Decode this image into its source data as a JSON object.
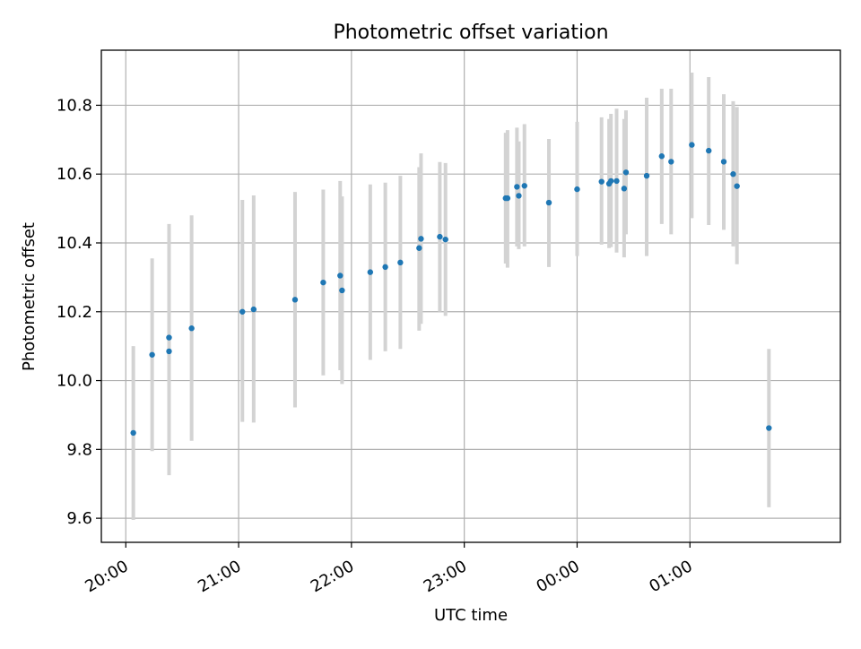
{
  "chart_data": {
    "type": "scatter",
    "title": "Photometric offset variation",
    "xlabel": "UTC time",
    "ylabel": "Photometric offset",
    "x_axis_kind": "time",
    "xlim": [
      "19:47",
      "02:20"
    ],
    "ylim": [
      9.53,
      10.96
    ],
    "x_ticks": [
      "20:00",
      "21:00",
      "22:00",
      "23:00",
      "00:00",
      "01:00"
    ],
    "y_ticks": [
      "9.6",
      "9.8",
      "10.0",
      "10.2",
      "10.4",
      "10.6",
      "10.8"
    ],
    "grid": true,
    "legend": "none",
    "colors": {
      "point": "#1f77b4",
      "errorbar": "#d3d3d3",
      "grid": "#b0b0b0"
    },
    "series": [
      {
        "points": [
          {
            "x": "20:04",
            "y": 9.848,
            "lo": 9.595,
            "hi": 10.1
          },
          {
            "x": "20:14",
            "y": 10.075,
            "lo": 9.795,
            "hi": 10.355
          },
          {
            "x": "20:23",
            "y": 10.125,
            "lo": 9.795,
            "hi": 10.455
          },
          {
            "x": "20:23",
            "y": 10.085,
            "lo": 9.725,
            "hi": 10.445
          },
          {
            "x": "20:35",
            "y": 10.152,
            "lo": 9.825,
            "hi": 10.48
          },
          {
            "x": "21:02",
            "y": 10.2,
            "lo": 9.88,
            "hi": 10.525
          },
          {
            "x": "21:08",
            "y": 10.207,
            "lo": 9.878,
            "hi": 10.538
          },
          {
            "x": "21:30",
            "y": 10.235,
            "lo": 9.922,
            "hi": 10.548
          },
          {
            "x": "21:45",
            "y": 10.285,
            "lo": 10.015,
            "hi": 10.555
          },
          {
            "x": "21:54",
            "y": 10.305,
            "lo": 10.03,
            "hi": 10.58
          },
          {
            "x": "21:55",
            "y": 10.262,
            "lo": 9.99,
            "hi": 10.535
          },
          {
            "x": "22:10",
            "y": 10.315,
            "lo": 10.06,
            "hi": 10.57
          },
          {
            "x": "22:18",
            "y": 10.33,
            "lo": 10.085,
            "hi": 10.575
          },
          {
            "x": "22:26",
            "y": 10.343,
            "lo": 10.092,
            "hi": 10.595
          },
          {
            "x": "22:36",
            "y": 10.385,
            "lo": 10.145,
            "hi": 10.62
          },
          {
            "x": "22:37",
            "y": 10.412,
            "lo": 10.165,
            "hi": 10.66
          },
          {
            "x": "22:47",
            "y": 10.418,
            "lo": 10.2,
            "hi": 10.635
          },
          {
            "x": "22:50",
            "y": 10.41,
            "lo": 10.188,
            "hi": 10.632
          },
          {
            "x": "23:22",
            "y": 10.53,
            "lo": 10.34,
            "hi": 10.72
          },
          {
            "x": "23:23",
            "y": 10.53,
            "lo": 10.328,
            "hi": 10.728
          },
          {
            "x": "23:28",
            "y": 10.563,
            "lo": 10.39,
            "hi": 10.735
          },
          {
            "x": "23:29",
            "y": 10.537,
            "lo": 10.382,
            "hi": 10.695
          },
          {
            "x": "23:32",
            "y": 10.566,
            "lo": 10.39,
            "hi": 10.745
          },
          {
            "x": "23:45",
            "y": 10.517,
            "lo": 10.33,
            "hi": 10.702
          },
          {
            "x": "00:00",
            "y": 10.556,
            "lo": 10.362,
            "hi": 10.752
          },
          {
            "x": "00:13",
            "y": 10.578,
            "lo": 10.395,
            "hi": 10.765
          },
          {
            "x": "00:17",
            "y": 10.572,
            "lo": 10.385,
            "hi": 10.76
          },
          {
            "x": "00:18",
            "y": 10.58,
            "lo": 10.388,
            "hi": 10.775
          },
          {
            "x": "00:21",
            "y": 10.58,
            "lo": 10.372,
            "hi": 10.79
          },
          {
            "x": "00:25",
            "y": 10.558,
            "lo": 10.358,
            "hi": 10.76
          },
          {
            "x": "00:26",
            "y": 10.605,
            "lo": 10.425,
            "hi": 10.785
          },
          {
            "x": "00:37",
            "y": 10.595,
            "lo": 10.362,
            "hi": 10.822
          },
          {
            "x": "00:45",
            "y": 10.652,
            "lo": 10.455,
            "hi": 10.848
          },
          {
            "x": "00:50",
            "y": 10.636,
            "lo": 10.425,
            "hi": 10.848
          },
          {
            "x": "01:01",
            "y": 10.685,
            "lo": 10.472,
            "hi": 10.895
          },
          {
            "x": "01:10",
            "y": 10.668,
            "lo": 10.452,
            "hi": 10.882
          },
          {
            "x": "01:18",
            "y": 10.636,
            "lo": 10.438,
            "hi": 10.832
          },
          {
            "x": "01:23",
            "y": 10.6,
            "lo": 10.39,
            "hi": 10.812
          },
          {
            "x": "01:25",
            "y": 10.565,
            "lo": 10.338,
            "hi": 10.795
          },
          {
            "x": "01:42",
            "y": 9.862,
            "lo": 9.632,
            "hi": 10.092
          }
        ]
      }
    ]
  }
}
